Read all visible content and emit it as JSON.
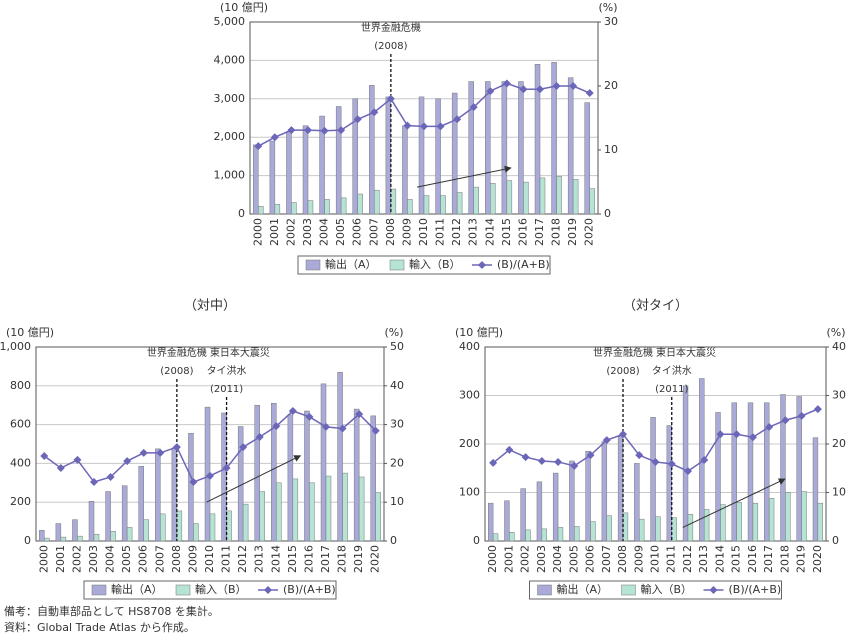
{
  "chart_data": [
    {
      "type": "combo",
      "y_label": "(10 億円)",
      "y2_label": "(%)",
      "categories": [
        "2000",
        "2001",
        "2002",
        "2003",
        "2004",
        "2005",
        "2006",
        "2007",
        "2008",
        "2009",
        "2010",
        "2011",
        "2012",
        "2013",
        "2014",
        "2015",
        "2016",
        "2017",
        "2018",
        "2019",
        "2020"
      ],
      "series": [
        {
          "name": "輸出（A）",
          "type": "bar",
          "color": "#aaaad8",
          "values": [
            1800,
            1900,
            2150,
            2300,
            2550,
            2800,
            3000,
            3350,
            3050,
            2300,
            3050,
            3000,
            3150,
            3450,
            3450,
            3450,
            3450,
            3900,
            3950,
            3550,
            2900
          ]
        },
        {
          "name": "輸入（B）",
          "type": "bar",
          "color": "#b6e4d4",
          "values": [
            200,
            250,
            300,
            350,
            380,
            420,
            520,
            620,
            650,
            380,
            480,
            480,
            560,
            700,
            800,
            870,
            830,
            940,
            980,
            900,
            660
          ]
        },
        {
          "name": "(B)/(A+B)",
          "type": "line",
          "axis": "y2",
          "color": "#6c66b8",
          "values": [
            10.6,
            12,
            13.1,
            13.1,
            13,
            13.1,
            14.8,
            15.9,
            18,
            13.8,
            13.7,
            13.7,
            14.8,
            16.7,
            19.2,
            20.4,
            19.5,
            19.5,
            20,
            20,
            18.9
          ]
        }
      ],
      "ylim": [
        0,
        5000
      ],
      "yticks": [
        0,
        {
          "value": 1000,
          "label": "1,000"
        },
        {
          "value": 2000,
          "label": "2,000"
        },
        {
          "value": 3000,
          "label": "3,000"
        },
        {
          "value": 4000,
          "label": "4,000"
        },
        {
          "value": 5000,
          "label": "5,000"
        }
      ],
      "y2lim": [
        0,
        30
      ],
      "y2ticks": [
        0,
        10,
        20,
        30
      ],
      "grid": true,
      "annotations": [
        {
          "texts": [
            "世界金融危機",
            "(2008)"
          ]
        }
      ]
    },
    {
      "type": "combo",
      "title": "（対中）",
      "y_label": "(10 億円)",
      "y2_label": "(%)",
      "categories": [
        "2000",
        "2001",
        "2002",
        "2003",
        "2004",
        "2005",
        "2006",
        "2007",
        "2008",
        "2009",
        "2010",
        "2011",
        "2012",
        "2013",
        "2014",
        "2015",
        "2016",
        "2017",
        "2018",
        "2019",
        "2020"
      ],
      "series": [
        {
          "name": "輸出（A）",
          "type": "bar",
          "color": "#aaaad8",
          "values": [
            55,
            90,
            110,
            205,
            255,
            285,
            385,
            475,
            480,
            555,
            690,
            660,
            590,
            700,
            710,
            650,
            670,
            810,
            870,
            680,
            645
          ]
        },
        {
          "name": "輸入（B）",
          "type": "bar",
          "color": "#b6e4d4",
          "values": [
            15,
            20,
            25,
            35,
            50,
            70,
            110,
            140,
            155,
            90,
            140,
            155,
            190,
            255,
            300,
            320,
            300,
            335,
            350,
            330,
            250
          ]
        },
        {
          "name": "(B)/(A+B)",
          "type": "line",
          "axis": "y2",
          "color": "#6c66b8",
          "values": [
            21.9,
            18.8,
            20.9,
            15.2,
            16.5,
            20.6,
            22.7,
            22.7,
            24.2,
            15.2,
            16.8,
            18.8,
            24.2,
            26.8,
            29.6,
            33.5,
            32,
            29.4,
            29,
            32.7,
            28.4
          ]
        }
      ],
      "ylim": [
        0,
        1000
      ],
      "yticks": [
        0,
        200,
        400,
        600,
        800,
        {
          "value": 1000,
          "label": "1,000"
        }
      ],
      "y2lim": [
        0,
        50
      ],
      "y2ticks": [
        0,
        10,
        20,
        30,
        40,
        50
      ],
      "grid": true,
      "annotations": [
        {
          "texts": [
            "世界金融危機",
            "(2008)"
          ]
        },
        {
          "texts": [
            "東日本大震災",
            "タイ洪水",
            "(2011)"
          ]
        }
      ]
    },
    {
      "type": "combo",
      "title": "（対タイ）",
      "y_label": "(10 億円)",
      "y2_label": "(%)",
      "categories": [
        "2000",
        "2001",
        "2002",
        "2003",
        "2004",
        "2005",
        "2006",
        "2007",
        "2008",
        "2009",
        "2010",
        "2011",
        "2012",
        "2013",
        "2014",
        "2015",
        "2016",
        "2017",
        "2018",
        "2019",
        "2020"
      ],
      "series": [
        {
          "name": "輸出（A）",
          "type": "bar",
          "color": "#aaaad8",
          "values": [
            78,
            83,
            108,
            122,
            140,
            165,
            185,
            205,
            215,
            160,
            255,
            238,
            320,
            335,
            265,
            285,
            285,
            285,
            302,
            298,
            213
          ]
        },
        {
          "name": "輸入（B）",
          "type": "bar",
          "color": "#b6e4d4",
          "values": [
            15,
            18,
            23,
            25,
            28,
            30,
            40,
            52,
            58,
            45,
            50,
            48,
            55,
            65,
            75,
            80,
            78,
            88,
            100,
            102,
            78
          ]
        },
        {
          "name": "(B)/(A+B)",
          "type": "line",
          "axis": "y2",
          "color": "#6c66b8",
          "values": [
            16.1,
            18.8,
            17.3,
            16.5,
            16.3,
            15.5,
            17.7,
            20.8,
            22,
            17.7,
            16.3,
            15.9,
            14.4,
            16.7,
            22,
            22,
            21.4,
            23.5,
            24.9,
            25.8,
            27.2
          ]
        }
      ],
      "ylim": [
        0,
        400
      ],
      "yticks": [
        0,
        100,
        200,
        300,
        400
      ],
      "y2lim": [
        0,
        40
      ],
      "y2ticks": [
        0,
        10,
        20,
        30,
        40
      ],
      "grid": true,
      "annotations": [
        {
          "texts": [
            "世界金融危機",
            "(2008)"
          ]
        },
        {
          "texts": [
            "東日本大震災",
            "タイ洪水",
            "(2011)"
          ]
        }
      ]
    }
  ],
  "notes": [
    "備考：自動車部品として HS8708 を集計。",
    "資料：Global Trade Atlas から作成。"
  ]
}
